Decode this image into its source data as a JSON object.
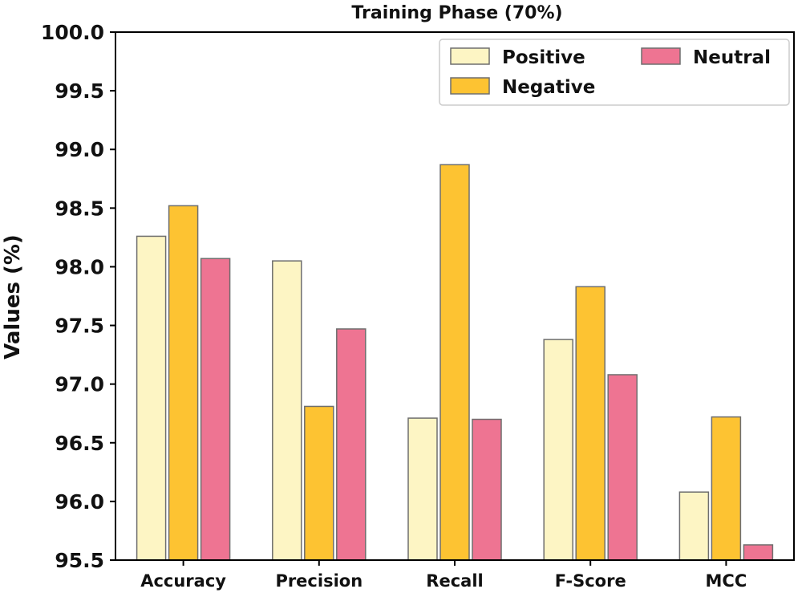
{
  "chart_data": {
    "type": "bar",
    "title": "Training Phase (70%)",
    "xlabel": "",
    "ylabel": "Values (%)",
    "ylim": [
      95.5,
      100.0
    ],
    "yticks": [
      95.5,
      96.0,
      96.5,
      97.0,
      97.5,
      98.0,
      98.5,
      99.0,
      99.5,
      100.0
    ],
    "ytick_labels": [
      "95.5",
      "96.0",
      "96.5",
      "97.0",
      "97.5",
      "98.0",
      "98.5",
      "99.0",
      "99.5",
      "100.0"
    ],
    "categories": [
      "Accuracy",
      "Precision",
      "Recall",
      "F-Score",
      "MCC"
    ],
    "series": [
      {
        "name": "Positive",
        "color": "#fdf5c4",
        "values": [
          98.26,
          98.05,
          96.71,
          97.38,
          96.08
        ]
      },
      {
        "name": "Negative",
        "color": "#fdc332",
        "values": [
          98.52,
          96.81,
          98.87,
          97.83,
          96.72
        ]
      },
      {
        "name": "Neutral",
        "color": "#ee7492",
        "values": [
          98.07,
          97.47,
          96.7,
          97.08,
          95.63
        ]
      }
    ],
    "legend_position": "top-right",
    "grid": false
  }
}
